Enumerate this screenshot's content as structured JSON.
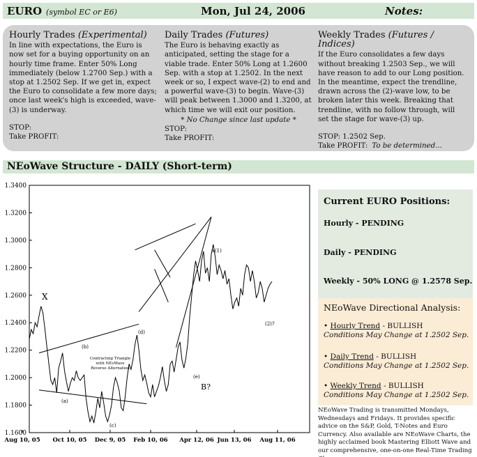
{
  "header": {
    "title": "EURO",
    "symbol": "(symbol EC or E6)",
    "date": "Mon, Jul 24, 2006",
    "notes": "Notes:"
  },
  "trades": {
    "hourly": {
      "title": "Hourly Trades",
      "subtitle": "(Experimental)",
      "body": "In line with expectations, the Euro is now set for a buying opportunity on an hourly time frame. Enter 50% Long immediately (below 1.2700 Sep.) with a stop at 1.2502 Sep. If we get in, expect the Euro to consolidate a few more days; once last week's high is exceeded, wave-(3) is underway.",
      "stop": "STOP:",
      "profit": "Take PROFIT:"
    },
    "daily": {
      "title": "Daily Trades",
      "subtitle": "(Futures)",
      "body": "The Euro is behaving exactly as anticipated, setting the stage for a viable trade. Enter 50% Long at 1.2600 Sep. with a stop at 1.2502. In the next week or so, I expect wave-(2) to end and a powerful wave-(3) to begin. Wave-(3) will peak between 1.3000 and 1.3200, at which time we will exit our position.",
      "note": "* No Change since last update *",
      "stop": "STOP:",
      "profit": "Take PROFIT:"
    },
    "weekly": {
      "title": "Weekly Trades",
      "subtitle": "(Futures / Indices)",
      "body": "If the Euro consolidates a few days without breaking 1.2503 Sep., we will have reason to add to our Long position. In the meantime, expect the trendline, drawn across the (2)-wave low, to be broken later this week. Breaking that trendline, with no follow through, will set the stage for wave-(3) up.",
      "stop": "STOP: 1.2502 Sep.",
      "profit": "Take PROFIT:",
      "profit_value": "To be determined..."
    }
  },
  "section_title": "NEoWave Structure - DAILY (Short-term)",
  "chart_data": {
    "type": "line",
    "title": "",
    "ylim": [
      1.16,
      1.34
    ],
    "yticks": [
      "1.3400",
      "1.3200",
      "1.3000",
      "1.2800",
      "1.2600",
      "1.2400",
      "1.2200",
      "1.2000",
      "1.1800",
      "1.1600"
    ],
    "xticks": [
      "Aug 10, 05",
      "Oct 10, 05",
      "Dec 9, 05",
      "Feb 10, 06",
      "Apr 12, 06",
      "Jun 13, 06",
      "Aug 11, 06"
    ],
    "x": [
      0,
      2,
      4,
      6,
      8,
      10,
      12,
      14,
      16,
      18,
      20,
      22,
      24,
      26,
      28,
      30,
      32,
      34,
      36,
      38,
      40,
      42,
      44,
      46,
      48,
      50,
      52,
      54,
      56,
      58,
      60,
      62,
      64,
      66,
      68,
      70,
      72,
      74,
      76,
      78,
      80,
      82,
      84,
      86,
      88,
      90,
      92,
      94,
      96,
      98,
      100,
      102,
      104,
      106,
      108,
      110,
      112,
      114,
      116,
      118,
      120,
      122,
      124,
      126,
      128,
      130,
      132,
      134,
      136,
      138,
      140,
      142,
      144,
      146,
      148,
      150,
      152,
      154,
      156,
      158,
      160,
      162,
      164,
      166,
      168,
      170,
      172,
      174,
      176,
      178,
      180,
      182,
      184,
      186,
      188,
      190,
      192,
      194,
      196,
      198,
      200,
      202,
      204,
      206,
      208,
      210,
      212,
      214,
      216,
      218,
      220,
      222,
      224,
      226,
      228,
      230,
      232,
      234,
      236,
      238,
      240,
      242,
      244,
      246,
      248
    ],
    "values": [
      1.228,
      1.235,
      1.232,
      1.24,
      1.237,
      1.245,
      1.252,
      1.247,
      1.235,
      1.222,
      1.21,
      1.198,
      1.195,
      1.2,
      1.189,
      1.207,
      1.212,
      1.218,
      1.205,
      1.197,
      1.19,
      1.196,
      1.2,
      1.198,
      1.205,
      1.2,
      1.198,
      1.2,
      1.202,
      1.185,
      1.175,
      1.168,
      1.172,
      1.167,
      1.175,
      1.185,
      1.178,
      1.19,
      1.182,
      1.172,
      1.168,
      1.173,
      1.18,
      1.193,
      1.2,
      1.196,
      1.19,
      1.178,
      1.176,
      1.186,
      1.2,
      1.21,
      1.206,
      1.213,
      1.224,
      1.231,
      1.22,
      1.206,
      1.198,
      1.202,
      1.196,
      1.189,
      1.186,
      1.195,
      1.186,
      1.19,
      1.194,
      1.2,
      1.208,
      1.198,
      1.19,
      1.195,
      1.21,
      1.212,
      1.204,
      1.213,
      1.222,
      1.226,
      1.213,
      1.207,
      1.214,
      1.225,
      1.245,
      1.26,
      1.275,
      1.285,
      1.278,
      1.27,
      1.285,
      1.292,
      1.276,
      1.28,
      1.27,
      1.29,
      1.297,
      1.288,
      1.275,
      1.282,
      1.278,
      1.272,
      1.278,
      1.268,
      1.272,
      1.26,
      1.25,
      1.255,
      1.258,
      1.252,
      1.265,
      1.26,
      1.275,
      1.282,
      1.28,
      1.27,
      1.278,
      1.27,
      1.258,
      1.262,
      1.27,
      1.265,
      1.255,
      1.26,
      1.265,
      1.268,
      1.27
    ],
    "labels": {
      "x": "X",
      "b_upper": "(b)",
      "d": "(d)",
      "a": "(a)",
      "c": "(c)",
      "e": "(e)",
      "b_question": "B?",
      "w1": "x(1)",
      "w2": "(2)?",
      "triangle_note": [
        "Contracting Triangle",
        "with NEoWave",
        "Reverse Alternation"
      ]
    }
  },
  "positions": {
    "title": "Current EURO Positions:",
    "hourly": "Hourly - PENDING",
    "daily": "Daily - PENDING",
    "weekly": "Weekly - 50% LONG @ 1.2578 Sep."
  },
  "analysis": {
    "title": "NEoWave Directional Analysis:",
    "items": [
      {
        "label": "Hourly Trend",
        "value": " - BULLISH",
        "cond": "Conditions May Change at 1.2502 Sep."
      },
      {
        "label": "Daily Trend",
        "value": " - BULLISH",
        "cond": "Conditions May Change at 1.2502 Sep."
      },
      {
        "label": "Weekly Trend",
        "value": " - BULLISH",
        "cond": "Conditions May Change at 1.2502 Sep."
      }
    ]
  },
  "footer": "NEoWave Trading is transmitted Mondays, Wednesdays and Fridays. It provides specific advice on the S&P, Gold, T-Notes and Euro Currency. Also available are NEoWave Charts, the highly acclaimed book Mastering Elliott Wave and our comprehensive, one-on-one Real-Time Trading Classes."
}
